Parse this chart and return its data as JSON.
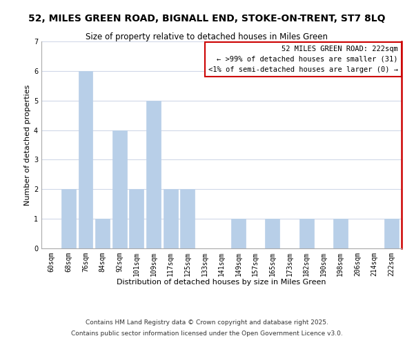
{
  "title": "52, MILES GREEN ROAD, BIGNALL END, STOKE-ON-TRENT, ST7 8LQ",
  "subtitle": "Size of property relative to detached houses in Miles Green",
  "xlabel": "Distribution of detached houses by size in Miles Green",
  "ylabel": "Number of detached properties",
  "bar_labels": [
    "60sqm",
    "68sqm",
    "76sqm",
    "84sqm",
    "92sqm",
    "101sqm",
    "109sqm",
    "117sqm",
    "125sqm",
    "133sqm",
    "141sqm",
    "149sqm",
    "157sqm",
    "165sqm",
    "173sqm",
    "182sqm",
    "190sqm",
    "198sqm",
    "206sqm",
    "214sqm",
    "222sqm"
  ],
  "bar_values": [
    0,
    2,
    6,
    1,
    4,
    2,
    5,
    2,
    2,
    0,
    0,
    1,
    0,
    1,
    0,
    1,
    0,
    1,
    0,
    0,
    1
  ],
  "bar_color": "#b8cfe8",
  "highlight_box_color": "#cc0000",
  "ylim": [
    0,
    7
  ],
  "yticks": [
    0,
    1,
    2,
    3,
    4,
    5,
    6,
    7
  ],
  "annotation_title": "52 MILES GREEN ROAD: 222sqm",
  "annotation_line1": "← >99% of detached houses are smaller (31)",
  "annotation_line2": "<1% of semi-detached houses are larger (0) →",
  "footer1": "Contains HM Land Registry data © Crown copyright and database right 2025.",
  "footer2": "Contains public sector information licensed under the Open Government Licence v3.0.",
  "background_color": "#ffffff",
  "grid_color": "#d0d8e8",
  "title_fontsize": 10,
  "subtitle_fontsize": 8.5,
  "axis_label_fontsize": 8,
  "tick_fontsize": 7,
  "annotation_fontsize": 7.5,
  "footer_fontsize": 6.5
}
